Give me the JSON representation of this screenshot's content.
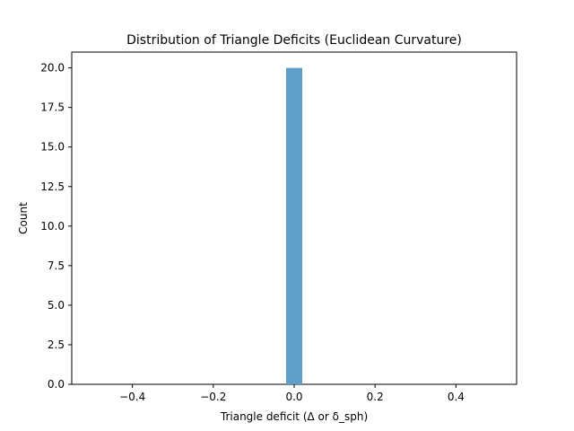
{
  "chart_data": {
    "type": "bar",
    "title": "Distribution of Triangle Deficits (Euclidean Curvature)",
    "xlabel": "Triangle deficit (Δ or δ_sph)",
    "ylabel": "Count",
    "xlim": [
      -0.55,
      0.55
    ],
    "ylim": [
      0,
      21
    ],
    "x_ticks": [
      -0.4,
      -0.2,
      0.0,
      0.2,
      0.4
    ],
    "x_tick_labels": [
      "−0.4",
      "−0.2",
      "0.0",
      "0.2",
      "0.4"
    ],
    "y_ticks": [
      0,
      2.5,
      5,
      7.5,
      10,
      12.5,
      15,
      17.5,
      20
    ],
    "y_tick_labels": [
      "0.0",
      "2.5",
      "5.0",
      "7.5",
      "10.0",
      "12.5",
      "15.0",
      "17.5",
      "20.0"
    ],
    "bins": [
      {
        "start": -0.02,
        "end": 0.02,
        "count": 20
      }
    ],
    "grid": false,
    "bar_color": "#5f9ec8"
  }
}
